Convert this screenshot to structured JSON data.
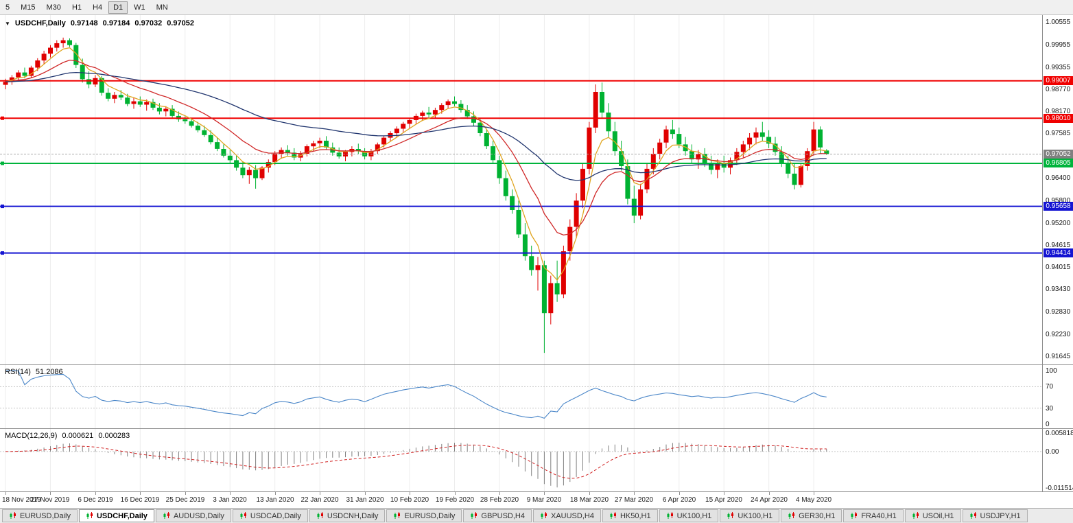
{
  "toolbar": {
    "periods": [
      {
        "label": "5",
        "active": false
      },
      {
        "label": "M15",
        "active": false
      },
      {
        "label": "M30",
        "active": false
      },
      {
        "label": "H1",
        "active": false
      },
      {
        "label": "H4",
        "active": false
      },
      {
        "label": "D1",
        "active": true
      },
      {
        "label": "W1",
        "active": false
      },
      {
        "label": "MN",
        "active": false
      }
    ]
  },
  "chart": {
    "dropdown_icon": "▼",
    "symbol": "USDCHF,Daily",
    "open": "0.97148",
    "high": "0.97184",
    "low": "0.97032",
    "close": "0.97052"
  },
  "chart_data": [
    {
      "type": "candlestick",
      "title": "USDCHF,Daily",
      "colors": {
        "bull": "#e00000",
        "bear": "#00b232"
      },
      "y_range": [
        0.9144,
        1.0076
      ],
      "y_ticks": [
        {
          "label": "1.00555",
          "value": 1.00555
        },
        {
          "label": "0.99955",
          "value": 0.99955
        },
        {
          "label": "0.99355",
          "value": 0.99355
        },
        {
          "label": "0.98770",
          "value": 0.9877
        },
        {
          "label": "0.98170",
          "value": 0.9817
        },
        {
          "label": "0.97585",
          "value": 0.97585
        },
        {
          "label": "0.96400",
          "value": 0.964
        },
        {
          "label": "0.95800",
          "value": 0.958
        },
        {
          "label": "0.95200",
          "value": 0.952
        },
        {
          "label": "0.94615",
          "value": 0.94615
        },
        {
          "label": "0.94015",
          "value": 0.94015
        },
        {
          "label": "0.93430",
          "value": 0.9343
        },
        {
          "label": "0.92830",
          "value": 0.9283
        },
        {
          "label": "0.92230",
          "value": 0.9223
        },
        {
          "label": "0.91645",
          "value": 0.91645
        }
      ],
      "hlines": [
        {
          "label": "0.99007",
          "value": 0.99007,
          "color": "#f00000",
          "width": 2,
          "handle": false
        },
        {
          "label": "0.98010",
          "value": 0.9801,
          "color": "#f00000",
          "width": 2,
          "handle": true
        },
        {
          "label": "0.96805",
          "value": 0.96805,
          "color": "#00b43c",
          "width": 2,
          "handle": true
        },
        {
          "label": "0.95658",
          "value": 0.95658,
          "color": "#1414d2",
          "width": 2,
          "handle": true
        },
        {
          "label": "0.94414",
          "value": 0.94414,
          "color": "#1414d2",
          "width": 2,
          "handle": true
        }
      ],
      "current_price": {
        "label": "0.97052",
        "value": 0.97052,
        "tag_color": "#808080",
        "line_color": "#a8a8a8"
      },
      "moving_averages": [
        {
          "name": "fast",
          "period": 5,
          "color": "#e0a520"
        },
        {
          "name": "medium",
          "period": 14,
          "color": "#d02828"
        },
        {
          "name": "slow",
          "period": 45,
          "color": "#20356e"
        }
      ],
      "x_label_step": 7,
      "x_labels": [
        "18 Nov 2019",
        "27 Nov 2019",
        "6 Dec 2019",
        "16 Dec 2019",
        "25 Dec 2019",
        "3 Jan 2020",
        "13 Jan 2020",
        "22 Jan 2020",
        "31 Jan 2020",
        "10 Feb 2020",
        "19 Feb 2020",
        "28 Feb 2020",
        "9 Mar 2020",
        "18 Mar 2020",
        "27 Mar 2020",
        "6 Apr 2020",
        "15 Apr 2020",
        "24 Apr 2020",
        "4 May 2020"
      ],
      "ohlc": [
        [
          0.989,
          0.9906,
          0.9878,
          0.9898
        ],
        [
          0.9898,
          0.9916,
          0.989,
          0.991
        ],
        [
          0.991,
          0.9929,
          0.9901,
          0.9923
        ],
        [
          0.9923,
          0.9936,
          0.9907,
          0.9914
        ],
        [
          0.9914,
          0.9941,
          0.9909,
          0.9936
        ],
        [
          0.9936,
          0.9961,
          0.9927,
          0.9955
        ],
        [
          0.9955,
          0.9981,
          0.9946,
          0.9973
        ],
        [
          0.9973,
          0.9996,
          0.9963,
          0.9989
        ],
        [
          0.9989,
          1.0009,
          0.9979,
          1.0001
        ],
        [
          1.0001,
          1.0016,
          0.9989,
          1.0009
        ],
        [
          1.0009,
          1.0014,
          0.9991,
          0.9996
        ],
        [
          0.9996,
          1.0002,
          0.9935,
          0.9943
        ],
        [
          0.9943,
          0.996,
          0.9896,
          0.9905
        ],
        [
          0.9905,
          0.9926,
          0.9881,
          0.9891
        ],
        [
          0.9891,
          0.9916,
          0.9884,
          0.9908
        ],
        [
          0.9908,
          0.9914,
          0.9861,
          0.9869
        ],
        [
          0.9869,
          0.9881,
          0.9846,
          0.9853
        ],
        [
          0.9853,
          0.9871,
          0.9841,
          0.9863
        ],
        [
          0.9863,
          0.9876,
          0.9849,
          0.9856
        ],
        [
          0.9856,
          0.9866,
          0.9833,
          0.9839
        ],
        [
          0.9839,
          0.9856,
          0.9826,
          0.9846
        ],
        [
          0.9846,
          0.9859,
          0.9831,
          0.9837
        ],
        [
          0.9837,
          0.9851,
          0.9821,
          0.9844
        ],
        [
          0.9844,
          0.9853,
          0.9823,
          0.9829
        ],
        [
          0.9829,
          0.9841,
          0.9811,
          0.9819
        ],
        [
          0.9819,
          0.9833,
          0.9806,
          0.9826
        ],
        [
          0.9826,
          0.9836,
          0.9801,
          0.9807
        ],
        [
          0.9807,
          0.9819,
          0.9791,
          0.9798
        ],
        [
          0.9798,
          0.9806,
          0.9786,
          0.9793
        ],
        [
          0.9793,
          0.9801,
          0.9776,
          0.9781
        ],
        [
          0.9781,
          0.9791,
          0.9763,
          0.9769
        ],
        [
          0.9769,
          0.9781,
          0.9751,
          0.9756
        ],
        [
          0.9756,
          0.9769,
          0.9731,
          0.9737
        ],
        [
          0.9737,
          0.9749,
          0.9713,
          0.9719
        ],
        [
          0.9719,
          0.9731,
          0.9696,
          0.9701
        ],
        [
          0.9701,
          0.9716,
          0.9681,
          0.9689
        ],
        [
          0.9689,
          0.9701,
          0.9661,
          0.9669
        ],
        [
          0.9669,
          0.9686,
          0.9641,
          0.9649
        ],
        [
          0.9649,
          0.9671,
          0.9626,
          0.9663
        ],
        [
          0.9663,
          0.9676,
          0.9613,
          0.9641
        ],
        [
          0.9641,
          0.9673,
          0.9636,
          0.9669
        ],
        [
          0.9669,
          0.9691,
          0.9656,
          0.9684
        ],
        [
          0.9684,
          0.9713,
          0.9676,
          0.9706
        ],
        [
          0.9706,
          0.9723,
          0.9693,
          0.9716
        ],
        [
          0.9716,
          0.9729,
          0.9701,
          0.9709
        ],
        [
          0.9709,
          0.9721,
          0.9689,
          0.9696
        ],
        [
          0.9696,
          0.9713,
          0.9686,
          0.9706
        ],
        [
          0.9706,
          0.9731,
          0.9699,
          0.9726
        ],
        [
          0.9726,
          0.9741,
          0.9713,
          0.9734
        ],
        [
          0.9734,
          0.9749,
          0.9721,
          0.9741
        ],
        [
          0.9741,
          0.9753,
          0.9716,
          0.9723
        ],
        [
          0.9723,
          0.9736,
          0.9701,
          0.9709
        ],
        [
          0.9709,
          0.9723,
          0.9693,
          0.9699
        ],
        [
          0.9699,
          0.9716,
          0.9686,
          0.9711
        ],
        [
          0.9711,
          0.9726,
          0.9699,
          0.9719
        ],
        [
          0.9719,
          0.9733,
          0.9706,
          0.9713
        ],
        [
          0.9713,
          0.9721,
          0.9691,
          0.9699
        ],
        [
          0.9699,
          0.9719,
          0.9689,
          0.9713
        ],
        [
          0.9713,
          0.9736,
          0.9706,
          0.9731
        ],
        [
          0.9731,
          0.9753,
          0.9723,
          0.9749
        ],
        [
          0.9749,
          0.9766,
          0.9739,
          0.9761
        ],
        [
          0.9761,
          0.9779,
          0.9751,
          0.9773
        ],
        [
          0.9773,
          0.9791,
          0.9763,
          0.9786
        ],
        [
          0.9786,
          0.9801,
          0.9773,
          0.9796
        ],
        [
          0.9796,
          0.9813,
          0.9786,
          0.9807
        ],
        [
          0.9807,
          0.9821,
          0.9796,
          0.9816
        ],
        [
          0.9816,
          0.9831,
          0.9803,
          0.9811
        ],
        [
          0.9811,
          0.9829,
          0.9801,
          0.9823
        ],
        [
          0.9823,
          0.9841,
          0.9813,
          0.9836
        ],
        [
          0.9836,
          0.9851,
          0.9826,
          0.9846
        ],
        [
          0.9846,
          0.9859,
          0.9833,
          0.9839
        ],
        [
          0.9839,
          0.9849,
          0.9816,
          0.9823
        ],
        [
          0.9823,
          0.9836,
          0.9799,
          0.9806
        ],
        [
          0.9806,
          0.9819,
          0.9781,
          0.9789
        ],
        [
          0.9789,
          0.9801,
          0.9753,
          0.9761
        ],
        [
          0.9761,
          0.9773,
          0.9719,
          0.9726
        ],
        [
          0.9726,
          0.9741,
          0.9681,
          0.9689
        ],
        [
          0.9689,
          0.9701,
          0.9626,
          0.9641
        ],
        [
          0.9641,
          0.9661,
          0.9581,
          0.9593
        ],
        [
          0.9593,
          0.9611,
          0.9546,
          0.9556
        ],
        [
          0.9556,
          0.9581,
          0.9481,
          0.9491
        ],
        [
          0.9491,
          0.9521,
          0.9421,
          0.9433
        ],
        [
          0.9433,
          0.9461,
          0.9381,
          0.9396
        ],
        [
          0.9396,
          0.9431,
          0.9341,
          0.9409
        ],
        [
          0.9409,
          0.9421,
          0.9175,
          0.9281
        ],
        [
          0.9281,
          0.9381,
          0.9251,
          0.9361
        ],
        [
          0.9361,
          0.9421,
          0.9311,
          0.9331
        ],
        [
          0.9331,
          0.9461,
          0.9321,
          0.9446
        ],
        [
          0.9446,
          0.9531,
          0.9421,
          0.9511
        ],
        [
          0.9511,
          0.9601,
          0.9481,
          0.9581
        ],
        [
          0.9581,
          0.9681,
          0.9561,
          0.9666
        ],
        [
          0.9666,
          0.9791,
          0.9651,
          0.9776
        ],
        [
          0.9776,
          0.9891,
          0.9761,
          0.9871
        ],
        [
          0.9871,
          0.9896,
          0.9801,
          0.9816
        ],
        [
          0.9816,
          0.9841,
          0.9751,
          0.9766
        ],
        [
          0.9766,
          0.9791,
          0.9701,
          0.9713
        ],
        [
          0.9713,
          0.9741,
          0.9661,
          0.9673
        ],
        [
          0.9673,
          0.9691,
          0.9571,
          0.9586
        ],
        [
          0.9586,
          0.9621,
          0.9521,
          0.9541
        ],
        [
          0.9541,
          0.9626,
          0.9531,
          0.9611
        ],
        [
          0.9611,
          0.9681,
          0.9601,
          0.9666
        ],
        [
          0.9666,
          0.9721,
          0.9651,
          0.9706
        ],
        [
          0.9706,
          0.9746,
          0.9691,
          0.9736
        ],
        [
          0.9736,
          0.9781,
          0.9721,
          0.9771
        ],
        [
          0.9771,
          0.9796,
          0.9746,
          0.9759
        ],
        [
          0.9759,
          0.9776,
          0.9721,
          0.9731
        ],
        [
          0.9731,
          0.9751,
          0.9701,
          0.9713
        ],
        [
          0.9713,
          0.9731,
          0.9681,
          0.9691
        ],
        [
          0.9691,
          0.9716,
          0.9666,
          0.9706
        ],
        [
          0.9706,
          0.9721,
          0.9671,
          0.9681
        ],
        [
          0.9681,
          0.9701,
          0.9651,
          0.9663
        ],
        [
          0.9663,
          0.9691,
          0.9641,
          0.9679
        ],
        [
          0.9679,
          0.9701,
          0.9656,
          0.9669
        ],
        [
          0.9669,
          0.9696,
          0.9651,
          0.9689
        ],
        [
          0.9689,
          0.9721,
          0.9676,
          0.9711
        ],
        [
          0.9711,
          0.9741,
          0.9696,
          0.9731
        ],
        [
          0.9731,
          0.9761,
          0.9716,
          0.9749
        ],
        [
          0.9749,
          0.9776,
          0.9731,
          0.9763
        ],
        [
          0.9763,
          0.9791,
          0.9741,
          0.9751
        ],
        [
          0.9751,
          0.9769,
          0.9721,
          0.9733
        ],
        [
          0.9733,
          0.9751,
          0.9701,
          0.9711
        ],
        [
          0.9711,
          0.9726,
          0.9671,
          0.9681
        ],
        [
          0.9681,
          0.9701,
          0.9641,
          0.9653
        ],
        [
          0.9653,
          0.9681,
          0.9611,
          0.9623
        ],
        [
          0.9623,
          0.9681,
          0.9616,
          0.9673
        ],
        [
          0.9673,
          0.9721,
          0.9661,
          0.9713
        ],
        [
          0.9713,
          0.9791,
          0.9701,
          0.9771
        ],
        [
          0.9771,
          0.9779,
          0.9706,
          0.9723
        ],
        [
          0.97148,
          0.97184,
          0.97032,
          0.97052
        ]
      ]
    },
    {
      "type": "line",
      "name": "RSI",
      "label": "RSI(14)",
      "value_text": "51.2086",
      "period": 14,
      "color": "#4a86c8",
      "levels": [
        70,
        30
      ],
      "y_range": [
        0,
        100
      ],
      "y_ticks": [
        {
          "label": "100",
          "value": 100
        },
        {
          "label": "70",
          "value": 70
        },
        {
          "label": "30",
          "value": 30
        },
        {
          "label": "0",
          "value": 0
        }
      ]
    },
    {
      "type": "bar",
      "name": "MACD",
      "label": "MACD(12,26,9)",
      "value_main": "0.000621",
      "value_signal": "0.000283",
      "params": [
        12,
        26,
        9
      ],
      "histogram_color": "#808080",
      "signal_color": "#d02020",
      "y_range": [
        -0.011514,
        0.005818
      ],
      "y_ticks": [
        {
          "label": "0.005818",
          "value": 0.005818
        },
        {
          "label": "0.00",
          "value": 0
        },
        {
          "label": "-0.011514",
          "value": -0.011514
        }
      ]
    }
  ],
  "tabs": [
    {
      "label": "EURUSD,Daily",
      "active": false
    },
    {
      "label": "USDCHF,Daily",
      "active": true
    },
    {
      "label": "AUDUSD,Daily",
      "active": false
    },
    {
      "label": "USDCAD,Daily",
      "active": false
    },
    {
      "label": "USDCNH,Daily",
      "active": false
    },
    {
      "label": "EURUSD,Daily",
      "active": false
    },
    {
      "label": "GBPUSD,H4",
      "active": false
    },
    {
      "label": "XAUUSD,H4",
      "active": false
    },
    {
      "label": "HK50,H1",
      "active": false
    },
    {
      "label": "UK100,H1",
      "active": false
    },
    {
      "label": "UK100,H1",
      "active": false
    },
    {
      "label": "GER30,H1",
      "active": false
    },
    {
      "label": "FRA40,H1",
      "active": false
    },
    {
      "label": "USOil,H1",
      "active": false
    },
    {
      "label": "USDJPY,H1",
      "active": false
    }
  ]
}
